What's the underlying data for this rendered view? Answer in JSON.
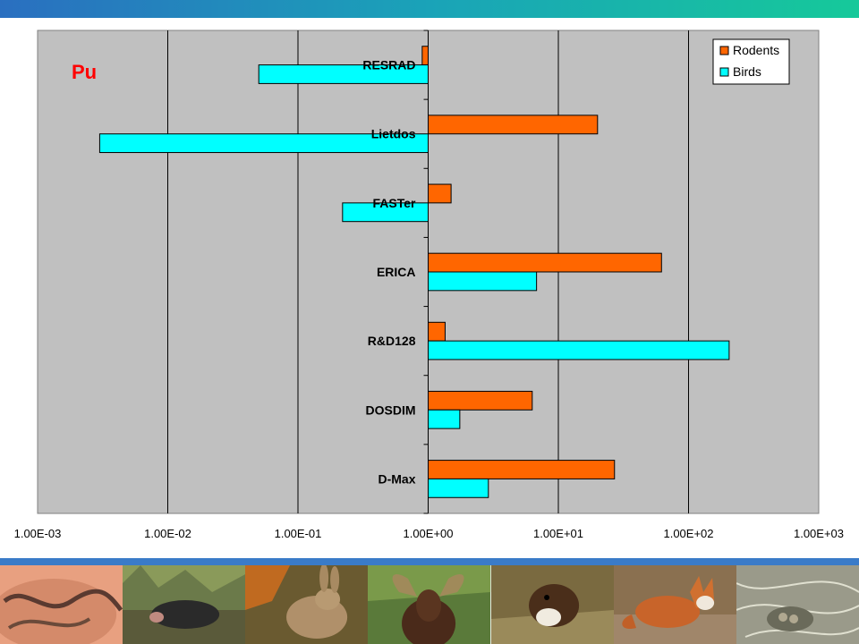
{
  "chart_data": {
    "type": "bar",
    "orientation": "horizontal",
    "title": "Pu",
    "xscale": "log",
    "xlim": [
      0.001,
      1000
    ],
    "xticks": [
      "1.00E-03",
      "1.00E-02",
      "1.00E-01",
      "1.00E+00",
      "1.00E+01",
      "1.00E+02",
      "1.00E+03"
    ],
    "grid": true,
    "legend_position": "top-right",
    "categories": [
      "RESRAD",
      "Lietdos",
      "FASTer",
      "ERICA",
      "R&D128",
      "DOSDIM",
      "D-Max"
    ],
    "series": [
      {
        "name": "Rodents",
        "color": "#ff6600",
        "values": [
          0.9,
          20,
          1.5,
          62,
          1.35,
          6.3,
          27
        ]
      },
      {
        "name": "Birds",
        "color": "#00ffff",
        "values": [
          0.05,
          0.003,
          0.22,
          6.8,
          205,
          1.75,
          2.9
        ]
      }
    ],
    "plot_background": "#c0c0c0"
  },
  "photos": [
    {
      "name": "earthworm-photo"
    },
    {
      "name": "mole-photo"
    },
    {
      "name": "rabbit-photo"
    },
    {
      "name": "moose-photo"
    },
    {
      "name": "weasel-photo"
    },
    {
      "name": "fox-photo"
    },
    {
      "name": "nest-photo"
    }
  ]
}
